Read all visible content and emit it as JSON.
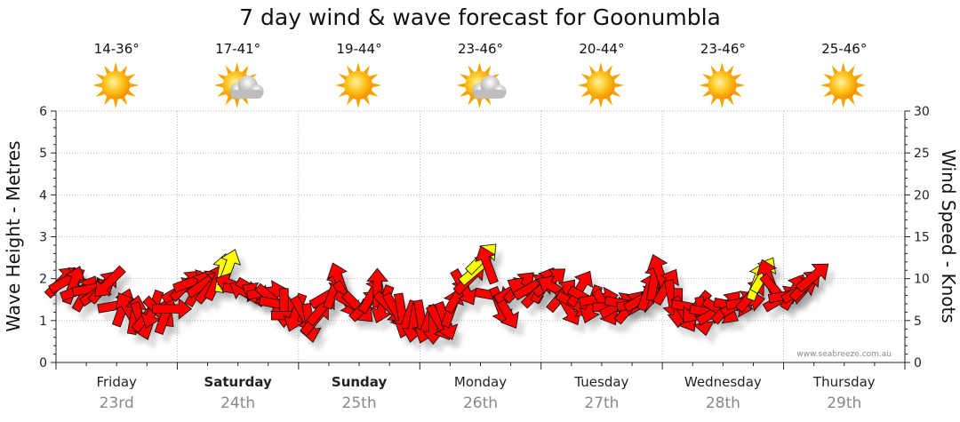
{
  "chart_data": {
    "type": "scatter",
    "title": "7 day wind & wave forecast for Goonumbla",
    "ylabel_left": "Wave Height - Metres",
    "ylabel_right": "Wind Speed - Knots",
    "ylim_left": [
      0,
      6
    ],
    "ylim_right": [
      0,
      30
    ],
    "yticks_left": [
      "0",
      "1",
      "2",
      "3",
      "4",
      "5",
      "6"
    ],
    "yticks_right": [
      "0",
      "5",
      "10",
      "15",
      "20",
      "25",
      "30"
    ],
    "grid": true,
    "credit": "www.seabreeze.com.au",
    "days": [
      {
        "name": "Friday",
        "date": "23rd",
        "temp": "14-36°",
        "weather": "sunny",
        "bold": false
      },
      {
        "name": "Saturday",
        "date": "24th",
        "temp": "17-41°",
        "weather": "partly-cloudy",
        "bold": true
      },
      {
        "name": "Sunday",
        "date": "25th",
        "temp": "19-44°",
        "weather": "sunny",
        "bold": true
      },
      {
        "name": "Monday",
        "date": "26th",
        "temp": "23-46°",
        "weather": "partly-cloudy",
        "bold": false
      },
      {
        "name": "Tuesday",
        "date": "27th",
        "temp": "20-44°",
        "weather": "sunny",
        "bold": false
      },
      {
        "name": "Wednesday",
        "date": "28th",
        "temp": "23-46°",
        "weather": "sunny",
        "bold": false
      },
      {
        "name": "Thursday",
        "date": "29th",
        "temp": "25-46°",
        "weather": "sunny",
        "bold": false
      }
    ],
    "x_unit": "days from start of Friday 23rd",
    "colors": {
      "wind_strong": "#ff0000",
      "wind_light": "#ffff00",
      "outline": "#111111",
      "grid": "#9a9a9a"
    },
    "wind_series": [
      {
        "x": 0.04,
        "v": 9.6,
        "dir": 45,
        "c": "red"
      },
      {
        "x": 0.09,
        "v": 9.8,
        "dir": 60,
        "c": "red"
      },
      {
        "x": 0.14,
        "v": 9.2,
        "dir": 20,
        "c": "red"
      },
      {
        "x": 0.19,
        "v": 8.6,
        "dir": 70,
        "c": "red"
      },
      {
        "x": 0.24,
        "v": 8.2,
        "dir": 30,
        "c": "red"
      },
      {
        "x": 0.29,
        "v": 8.8,
        "dir": 80,
        "c": "red"
      },
      {
        "x": 0.34,
        "v": 8.4,
        "dir": 55,
        "c": "red"
      },
      {
        "x": 0.39,
        "v": 9.0,
        "dir": 40,
        "c": "red"
      },
      {
        "x": 0.44,
        "v": 9.6,
        "dir": 225,
        "c": "red"
      },
      {
        "x": 0.5,
        "v": 6.8,
        "dir": 80,
        "c": "red"
      },
      {
        "x": 0.55,
        "v": 6.5,
        "dir": 20,
        "c": "red"
      },
      {
        "x": 0.6,
        "v": 6.2,
        "dir": 330,
        "c": "red"
      },
      {
        "x": 0.65,
        "v": 5.6,
        "dir": 10,
        "c": "red"
      },
      {
        "x": 0.7,
        "v": 5.0,
        "dir": 160,
        "c": "red"
      },
      {
        "x": 0.75,
        "v": 5.6,
        "dir": 40,
        "c": "red"
      },
      {
        "x": 0.8,
        "v": 6.4,
        "dir": 200,
        "c": "red"
      },
      {
        "x": 0.85,
        "v": 6.0,
        "dir": 135,
        "c": "red"
      },
      {
        "x": 0.9,
        "v": 5.6,
        "dir": 20,
        "c": "red"
      },
      {
        "x": 0.95,
        "v": 6.4,
        "dir": 90,
        "c": "red"
      },
      {
        "x": 1.02,
        "v": 8.6,
        "dir": 60,
        "c": "red"
      },
      {
        "x": 1.07,
        "v": 9.2,
        "dir": 45,
        "c": "red"
      },
      {
        "x": 1.12,
        "v": 9.6,
        "dir": 70,
        "c": "red"
      },
      {
        "x": 1.17,
        "v": 8.8,
        "dir": 30,
        "c": "red"
      },
      {
        "x": 1.22,
        "v": 9.4,
        "dir": 55,
        "c": "red"
      },
      {
        "x": 1.27,
        "v": 9.0,
        "dir": 40,
        "c": "red"
      },
      {
        "x": 1.32,
        "v": 9.6,
        "dir": 25,
        "c": "red"
      },
      {
        "x": 1.37,
        "v": 10.6,
        "dir": 10,
        "c": "yellow"
      },
      {
        "x": 1.42,
        "v": 11.2,
        "dir": 20,
        "c": "yellow"
      },
      {
        "x": 1.47,
        "v": 9.2,
        "dir": 290,
        "c": "red"
      },
      {
        "x": 1.53,
        "v": 8.6,
        "dir": 100,
        "c": "red"
      },
      {
        "x": 1.58,
        "v": 8.2,
        "dir": 300,
        "c": "red"
      },
      {
        "x": 1.63,
        "v": 8.6,
        "dir": 120,
        "c": "red"
      },
      {
        "x": 1.68,
        "v": 8.0,
        "dir": 300,
        "c": "red"
      },
      {
        "x": 1.73,
        "v": 8.4,
        "dir": 80,
        "c": "red"
      },
      {
        "x": 1.78,
        "v": 7.6,
        "dir": 130,
        "c": "red"
      },
      {
        "x": 1.83,
        "v": 7.0,
        "dir": 100,
        "c": "red"
      },
      {
        "x": 1.88,
        "v": 6.6,
        "dir": 180,
        "c": "red"
      },
      {
        "x": 1.93,
        "v": 5.6,
        "dir": 90,
        "c": "red"
      },
      {
        "x": 1.98,
        "v": 6.0,
        "dir": 200,
        "c": "red"
      },
      {
        "x": 2.04,
        "v": 5.8,
        "dir": 150,
        "c": "red"
      },
      {
        "x": 2.09,
        "v": 4.8,
        "dir": 170,
        "c": "red"
      },
      {
        "x": 2.14,
        "v": 5.2,
        "dir": 40,
        "c": "red"
      },
      {
        "x": 2.19,
        "v": 6.4,
        "dir": 40,
        "c": "red"
      },
      {
        "x": 2.24,
        "v": 8.0,
        "dir": 60,
        "c": "red"
      },
      {
        "x": 2.29,
        "v": 8.6,
        "dir": 20,
        "c": "red"
      },
      {
        "x": 2.34,
        "v": 9.6,
        "dir": 340,
        "c": "red"
      },
      {
        "x": 2.39,
        "v": 7.6,
        "dir": 150,
        "c": "red"
      },
      {
        "x": 2.44,
        "v": 7.0,
        "dir": 120,
        "c": "red"
      },
      {
        "x": 2.49,
        "v": 6.6,
        "dir": 135,
        "c": "red"
      },
      {
        "x": 2.55,
        "v": 6.8,
        "dir": 45,
        "c": "red"
      },
      {
        "x": 2.6,
        "v": 8.0,
        "dir": 30,
        "c": "red"
      },
      {
        "x": 2.65,
        "v": 8.8,
        "dir": 0,
        "c": "red"
      },
      {
        "x": 2.7,
        "v": 7.0,
        "dir": 200,
        "c": "red"
      },
      {
        "x": 2.75,
        "v": 6.6,
        "dir": 135,
        "c": "red"
      },
      {
        "x": 2.8,
        "v": 6.2,
        "dir": 150,
        "c": "red"
      },
      {
        "x": 2.85,
        "v": 6.0,
        "dir": 170,
        "c": "red"
      },
      {
        "x": 2.9,
        "v": 5.2,
        "dir": 200,
        "c": "red"
      },
      {
        "x": 2.95,
        "v": 4.8,
        "dir": 190,
        "c": "red"
      },
      {
        "x": 3.01,
        "v": 5.2,
        "dir": 170,
        "c": "red"
      },
      {
        "x": 3.06,
        "v": 4.6,
        "dir": 200,
        "c": "red"
      },
      {
        "x": 3.11,
        "v": 4.6,
        "dir": 180,
        "c": "red"
      },
      {
        "x": 3.16,
        "v": 4.8,
        "dir": 150,
        "c": "red"
      },
      {
        "x": 3.21,
        "v": 5.0,
        "dir": 160,
        "c": "red"
      },
      {
        "x": 3.26,
        "v": 6.4,
        "dir": 20,
        "c": "red"
      },
      {
        "x": 3.31,
        "v": 8.0,
        "dir": 30,
        "c": "red"
      },
      {
        "x": 3.36,
        "v": 9.0,
        "dir": 150,
        "c": "red"
      },
      {
        "x": 3.41,
        "v": 10.0,
        "dir": 45,
        "c": "red"
      },
      {
        "x": 3.46,
        "v": 11.0,
        "dir": 50,
        "c": "yellow"
      },
      {
        "x": 3.51,
        "v": 12.4,
        "dir": 45,
        "c": "yellow"
      },
      {
        "x": 3.56,
        "v": 11.6,
        "dir": 340,
        "c": "red"
      },
      {
        "x": 3.61,
        "v": 8.0,
        "dir": 100,
        "c": "red"
      },
      {
        "x": 3.66,
        "v": 6.8,
        "dir": 160,
        "c": "red"
      },
      {
        "x": 3.71,
        "v": 6.2,
        "dir": 150,
        "c": "red"
      },
      {
        "x": 3.76,
        "v": 8.6,
        "dir": 60,
        "c": "red"
      },
      {
        "x": 3.82,
        "v": 9.0,
        "dir": 45,
        "c": "red"
      },
      {
        "x": 3.87,
        "v": 8.6,
        "dir": 300,
        "c": "red"
      },
      {
        "x": 3.92,
        "v": 9.0,
        "dir": 60,
        "c": "red"
      },
      {
        "x": 3.97,
        "v": 8.4,
        "dir": 45,
        "c": "red"
      },
      {
        "x": 4.02,
        "v": 9.2,
        "dir": 30,
        "c": "red"
      },
      {
        "x": 4.07,
        "v": 9.6,
        "dir": 50,
        "c": "red"
      },
      {
        "x": 4.12,
        "v": 8.8,
        "dir": 300,
        "c": "red"
      },
      {
        "x": 4.17,
        "v": 8.0,
        "dir": 40,
        "c": "red"
      },
      {
        "x": 4.22,
        "v": 6.6,
        "dir": 150,
        "c": "red"
      },
      {
        "x": 4.27,
        "v": 7.0,
        "dir": 120,
        "c": "red"
      },
      {
        "x": 4.32,
        "v": 8.8,
        "dir": 30,
        "c": "red"
      },
      {
        "x": 4.37,
        "v": 7.6,
        "dir": 120,
        "c": "red"
      },
      {
        "x": 4.42,
        "v": 7.0,
        "dir": 200,
        "c": "red"
      },
      {
        "x": 4.47,
        "v": 7.6,
        "dir": 80,
        "c": "red"
      },
      {
        "x": 4.53,
        "v": 6.6,
        "dir": 150,
        "c": "red"
      },
      {
        "x": 4.58,
        "v": 6.6,
        "dir": 90,
        "c": "red"
      },
      {
        "x": 4.63,
        "v": 6.8,
        "dir": 60,
        "c": "red"
      },
      {
        "x": 4.68,
        "v": 7.0,
        "dir": 100,
        "c": "red"
      },
      {
        "x": 4.73,
        "v": 6.6,
        "dir": 40,
        "c": "red"
      },
      {
        "x": 4.78,
        "v": 7.0,
        "dir": 80,
        "c": "red"
      },
      {
        "x": 4.83,
        "v": 7.6,
        "dir": 60,
        "c": "red"
      },
      {
        "x": 4.88,
        "v": 8.4,
        "dir": 20,
        "c": "red"
      },
      {
        "x": 4.93,
        "v": 9.6,
        "dir": 10,
        "c": "red"
      },
      {
        "x": 4.98,
        "v": 10.6,
        "dir": 340,
        "c": "red"
      },
      {
        "x": 5.03,
        "v": 9.0,
        "dir": 30,
        "c": "red"
      },
      {
        "x": 5.08,
        "v": 7.6,
        "dir": 170,
        "c": "red"
      },
      {
        "x": 5.13,
        "v": 6.6,
        "dir": 180,
        "c": "red"
      },
      {
        "x": 5.18,
        "v": 5.8,
        "dir": 150,
        "c": "red"
      },
      {
        "x": 5.23,
        "v": 6.6,
        "dir": 100,
        "c": "red"
      },
      {
        "x": 5.28,
        "v": 6.6,
        "dir": 220,
        "c": "red"
      },
      {
        "x": 5.33,
        "v": 5.6,
        "dir": 170,
        "c": "red"
      },
      {
        "x": 5.38,
        "v": 6.0,
        "dir": 100,
        "c": "red"
      },
      {
        "x": 5.43,
        "v": 6.0,
        "dir": 60,
        "c": "red"
      },
      {
        "x": 5.48,
        "v": 6.2,
        "dir": 120,
        "c": "red"
      },
      {
        "x": 5.53,
        "v": 6.6,
        "dir": 40,
        "c": "red"
      },
      {
        "x": 5.58,
        "v": 6.8,
        "dir": 100,
        "c": "red"
      },
      {
        "x": 5.63,
        "v": 7.0,
        "dir": 60,
        "c": "red"
      },
      {
        "x": 5.68,
        "v": 7.2,
        "dir": 80,
        "c": "red"
      },
      {
        "x": 5.73,
        "v": 8.0,
        "dir": 40,
        "c": "red"
      },
      {
        "x": 5.78,
        "v": 9.6,
        "dir": 20,
        "c": "yellow"
      },
      {
        "x": 5.83,
        "v": 10.4,
        "dir": 30,
        "c": "yellow"
      },
      {
        "x": 5.88,
        "v": 10.0,
        "dir": 340,
        "c": "red"
      },
      {
        "x": 5.93,
        "v": 8.6,
        "dir": 140,
        "c": "red"
      },
      {
        "x": 5.98,
        "v": 7.6,
        "dir": 60,
        "c": "red"
      },
      {
        "x": 6.03,
        "v": 8.0,
        "dir": 80,
        "c": "red"
      },
      {
        "x": 6.08,
        "v": 8.4,
        "dir": 30,
        "c": "red"
      },
      {
        "x": 6.13,
        "v": 8.6,
        "dir": 60,
        "c": "red"
      },
      {
        "x": 6.18,
        "v": 9.2,
        "dir": 45,
        "c": "red"
      },
      {
        "x": 6.24,
        "v": 10.2,
        "dir": 50,
        "c": "red"
      }
    ]
  }
}
